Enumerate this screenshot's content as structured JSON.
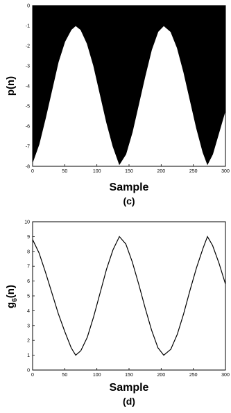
{
  "charts": [
    {
      "type": "area",
      "caption": "(c)",
      "xlabel": "Sample",
      "ylabel": "p(n)",
      "xlim": [
        0,
        300
      ],
      "ylim": [
        -8,
        0
      ],
      "xticks": [
        0,
        50,
        100,
        150,
        200,
        250,
        300
      ],
      "yticks": [
        0,
        -1,
        -2,
        -3,
        -4,
        -5,
        -6,
        -7,
        -8
      ],
      "fill_color": "#000000",
      "series": [
        {
          "description_of_shape": "periodic sinusoid, period ~137 samples, minima ~-1 at n≈67 and n≈204, maxima ~-8 at n≈0, 135, 272",
          "x": [
            0,
            10,
            20,
            30,
            40,
            50,
            60,
            67,
            75,
            85,
            95,
            105,
            115,
            125,
            135,
            145,
            155,
            165,
            175,
            185,
            195,
            204,
            215,
            225,
            235,
            245,
            255,
            265,
            272,
            280,
            290,
            300
          ],
          "y": [
            -7.8,
            -6.9,
            -5.6,
            -4.2,
            -2.8,
            -1.8,
            -1.2,
            -1.0,
            -1.2,
            -1.9,
            -3.0,
            -4.4,
            -5.8,
            -7.0,
            -7.9,
            -7.4,
            -6.3,
            -4.9,
            -3.5,
            -2.2,
            -1.3,
            -1.0,
            -1.3,
            -2.1,
            -3.3,
            -4.7,
            -6.1,
            -7.3,
            -7.9,
            -7.4,
            -6.3,
            -5.2
          ]
        }
      ]
    },
    {
      "type": "line",
      "caption": "(d)",
      "xlabel": "Sample",
      "ylabel_main": "g",
      "ylabel_sub": "6",
      "ylabel_tail": "(n)",
      "xlim": [
        0,
        300
      ],
      "ylim": [
        0,
        10
      ],
      "xticks": [
        0,
        50,
        100,
        150,
        200,
        250,
        300
      ],
      "yticks": [
        0,
        1,
        2,
        3,
        4,
        5,
        6,
        7,
        8,
        9,
        10
      ],
      "series": [
        {
          "x": [
            0,
            10,
            20,
            30,
            40,
            50,
            60,
            67,
            75,
            85,
            95,
            105,
            115,
            125,
            135,
            145,
            155,
            165,
            175,
            185,
            195,
            204,
            215,
            225,
            235,
            245,
            255,
            265,
            272,
            280,
            290,
            300
          ],
          "y": [
            8.8,
            7.9,
            6.6,
            5.2,
            3.8,
            2.6,
            1.5,
            1.0,
            1.3,
            2.2,
            3.6,
            5.2,
            6.8,
            8.1,
            9.0,
            8.5,
            7.3,
            5.8,
            4.2,
            2.7,
            1.5,
            1.0,
            1.4,
            2.4,
            3.8,
            5.4,
            6.9,
            8.2,
            9.0,
            8.4,
            7.2,
            5.8
          ]
        }
      ]
    }
  ]
}
